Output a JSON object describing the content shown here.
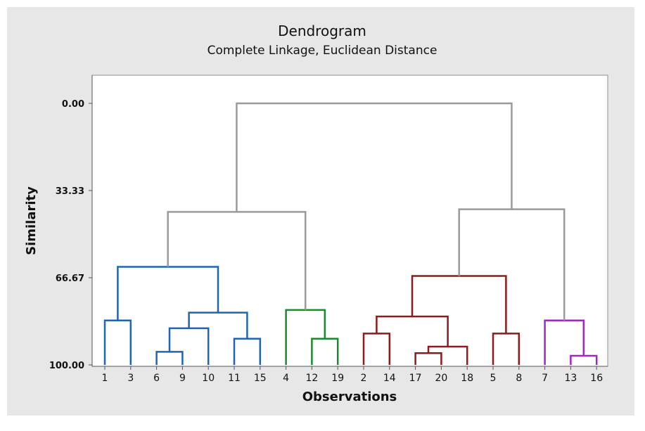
{
  "chart_data": {
    "type": "dendrogram",
    "title": "Dendrogram",
    "subtitle": "Complete Linkage, Euclidean Distance",
    "xlabel": "Observations",
    "ylabel": "Similarity",
    "ylim": [
      100,
      0
    ],
    "yticks": [
      "0.00",
      "33.33",
      "66.67",
      "100.00"
    ],
    "leaves": [
      "1",
      "3",
      "6",
      "9",
      "10",
      "11",
      "15",
      "4",
      "12",
      "19",
      "2",
      "14",
      "17",
      "20",
      "18",
      "5",
      "8",
      "7",
      "13",
      "16"
    ],
    "colors": {
      "blue": "#1f65b3",
      "green": "#1a8a2e",
      "red": "#8e1a1a",
      "purple": "#a127c5",
      "gray": "#9a9a9a"
    },
    "merges": [
      {
        "id": "m1",
        "left": "1",
        "right": "3",
        "similarity": 83.0,
        "color": "blue"
      },
      {
        "id": "m2",
        "left": "6",
        "right": "9",
        "similarity": 95.0,
        "color": "blue"
      },
      {
        "id": "m3",
        "left": "m2",
        "right": "10",
        "similarity": 86.0,
        "color": "blue"
      },
      {
        "id": "m4",
        "left": "11",
        "right": "15",
        "similarity": 90.0,
        "color": "blue"
      },
      {
        "id": "m5",
        "left": "m3",
        "right": "m4",
        "similarity": 80.0,
        "color": "blue"
      },
      {
        "id": "m6",
        "left": "m1",
        "right": "m5",
        "similarity": 62.5,
        "color": "blue"
      },
      {
        "id": "m7",
        "left": "12",
        "right": "19",
        "similarity": 90.0,
        "color": "green"
      },
      {
        "id": "m8",
        "left": "4",
        "right": "m7",
        "similarity": 79.0,
        "color": "green"
      },
      {
        "id": "m9",
        "left": "m6",
        "right": "m8",
        "similarity": 41.5,
        "color": "gray"
      },
      {
        "id": "m10",
        "left": "2",
        "right": "14",
        "similarity": 88.0,
        "color": "red"
      },
      {
        "id": "m11",
        "left": "17",
        "right": "20",
        "similarity": 95.5,
        "color": "red"
      },
      {
        "id": "m12",
        "left": "m11",
        "right": "18",
        "similarity": 93.0,
        "color": "red"
      },
      {
        "id": "m13",
        "left": "m10",
        "right": "m12",
        "similarity": 81.5,
        "color": "red"
      },
      {
        "id": "m14",
        "left": "5",
        "right": "8",
        "similarity": 88.0,
        "color": "red"
      },
      {
        "id": "m15",
        "left": "m13",
        "right": "m14",
        "similarity": 66.0,
        "color": "red"
      },
      {
        "id": "m16",
        "left": "13",
        "right": "16",
        "similarity": 96.5,
        "color": "purple"
      },
      {
        "id": "m17",
        "left": "7",
        "right": "m16",
        "similarity": 83.0,
        "color": "purple"
      },
      {
        "id": "m18",
        "left": "m15",
        "right": "m17",
        "similarity": 40.5,
        "color": "gray"
      },
      {
        "id": "m19",
        "left": "m9",
        "right": "m18",
        "similarity": 0.0,
        "color": "gray"
      }
    ]
  }
}
